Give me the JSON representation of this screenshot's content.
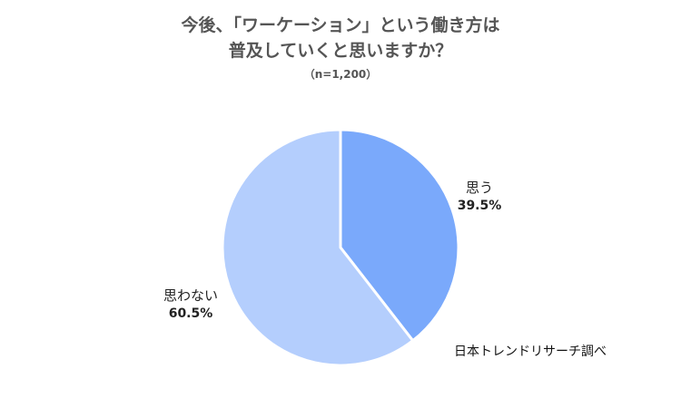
{
  "header": {
    "title_line1": "今後、「ワーケーション」という働き方は",
    "title_line2": "普及していくと思いますか？",
    "subtitle": "（n=1,200）"
  },
  "footer": {
    "source": "日本トレンドリサーチ調べ"
  },
  "chart_data": {
    "type": "pie",
    "title": "今後、「ワーケーション」という働き方は普及していくと思いますか？",
    "subtitle": "（n=1,200）",
    "slices": [
      {
        "label": "思う",
        "value": 39.5,
        "display": "39.5%",
        "color": "#7aa9fb"
      },
      {
        "label": "思わない",
        "value": 60.5,
        "display": "60.5%",
        "color": "#b4cefd"
      }
    ],
    "start": "12 o'clock",
    "direction": "clockwise",
    "legend": "none"
  }
}
